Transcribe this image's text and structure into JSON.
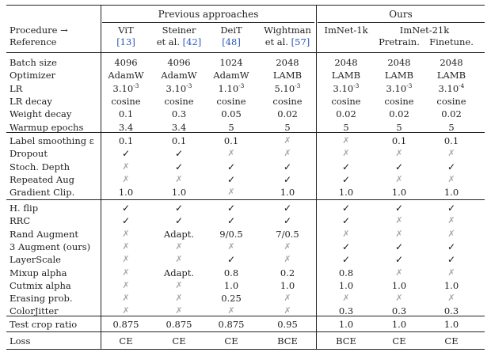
{
  "header": {
    "groups": [
      "Previous approaches",
      "Ours"
    ],
    "row_label_1": "Procedure →",
    "row_label_2": "Reference",
    "columns": [
      {
        "name": "ViT",
        "ref": "[13]"
      },
      {
        "name": "Steiner",
        "name2": "et al.",
        "ref": "[42]"
      },
      {
        "name": "DeiT",
        "ref": "[48]"
      },
      {
        "name": "Wightman",
        "name2": "et al.",
        "ref": "[57]"
      },
      {
        "name": "ImNet-1k"
      },
      {
        "name": "ImNet-21k",
        "sub": "Pretrain."
      },
      {
        "name": "",
        "sub": "Finetune."
      }
    ]
  },
  "sections": [
    {
      "rows": [
        {
          "label": "Batch size",
          "values": [
            "4096",
            "4096",
            "1024",
            "2048",
            "2048",
            "2048",
            "2048"
          ]
        },
        {
          "label": "Optimizer",
          "values": [
            "AdamW",
            "AdamW",
            "AdamW",
            "LAMB",
            "LAMB",
            "LAMB",
            "LAMB"
          ]
        },
        {
          "label": "LR",
          "values": [
            "3.10⁻³",
            "3.10⁻³",
            "1.10⁻³",
            "5.10⁻³",
            "3.10⁻³",
            "3.10⁻³",
            "3.10⁻⁴"
          ]
        },
        {
          "label": "LR decay",
          "values": [
            "cosine",
            "cosine",
            "cosine",
            "cosine",
            "cosine",
            "cosine",
            "cosine"
          ]
        },
        {
          "label": "Weight decay",
          "values": [
            "0.1",
            "0.3",
            "0.05",
            "0.02",
            "0.02",
            "0.02",
            "0.02"
          ]
        },
        {
          "label": "Warmup epochs",
          "values": [
            "3.4",
            "3.4",
            "5",
            "5",
            "5",
            "5",
            "5"
          ]
        }
      ]
    },
    {
      "rows": [
        {
          "label": "Label smoothing ε",
          "values": [
            "0.1",
            "0.1",
            "0.1",
            "✗",
            "✗",
            "0.1",
            "0.1"
          ]
        },
        {
          "label": "Dropout",
          "values": [
            "✓",
            "✓",
            "✗",
            "✗",
            "✗",
            "✗",
            "✗"
          ]
        },
        {
          "label": "Stoch. Depth",
          "values": [
            "✗",
            "✓",
            "✓",
            "✓",
            "✓",
            "✓",
            "✓"
          ]
        },
        {
          "label": "Repeated Aug",
          "values": [
            "✗",
            "✗",
            "✓",
            "✓",
            "✓",
            "✗",
            "✗"
          ]
        },
        {
          "label": "Gradient Clip.",
          "values": [
            "1.0",
            "1.0",
            "✗",
            "1.0",
            "1.0",
            "1.0",
            "1.0"
          ]
        }
      ]
    },
    {
      "rows": [
        {
          "label": "H. flip",
          "values": [
            "✓",
            "✓",
            "✓",
            "✓",
            "✓",
            "✓",
            "✓"
          ]
        },
        {
          "label": "RRC",
          "values": [
            "✓",
            "✓",
            "✓",
            "✓",
            "✓",
            "✗",
            "✗"
          ]
        },
        {
          "label": "Rand Augment",
          "values": [
            "✗",
            "Adapt.",
            "9/0.5",
            "7/0.5",
            "✗",
            "✗",
            "✗"
          ]
        },
        {
          "label": "3 Augment (ours)",
          "values": [
            "✗",
            "✗",
            "✗",
            "✗",
            "✓",
            "✓",
            "✓"
          ]
        },
        {
          "label": "LayerScale",
          "values": [
            "✗",
            "✗",
            "✓",
            "✗",
            "✓",
            "✓",
            "✓"
          ]
        },
        {
          "label": "Mixup alpha",
          "values": [
            "✗",
            "Adapt.",
            "0.8",
            "0.2",
            "0.8",
            "✗",
            "✗"
          ]
        },
        {
          "label": "Cutmix alpha",
          "values": [
            "✗",
            "✗",
            "1.0",
            "1.0",
            "1.0",
            "1.0",
            "1.0"
          ]
        },
        {
          "label": "Erasing prob.",
          "values": [
            "✗",
            "✗",
            "0.25",
            "✗",
            "✗",
            "✗",
            "✗"
          ]
        },
        {
          "label": "ColorJitter",
          "values": [
            "✗",
            "✗",
            "✗",
            "✗",
            "0.3",
            "0.3",
            "0.3"
          ]
        }
      ]
    },
    {
      "rows": [
        {
          "label": "Test crop ratio",
          "values": [
            "0.875",
            "0.875",
            "0.875",
            "0.95",
            "1.0",
            "1.0",
            "1.0"
          ]
        }
      ]
    },
    {
      "rows": [
        {
          "label": "Loss",
          "values": [
            "CE",
            "CE",
            "CE",
            "BCE",
            "BCE",
            "CE",
            "CE"
          ]
        }
      ]
    }
  ]
}
